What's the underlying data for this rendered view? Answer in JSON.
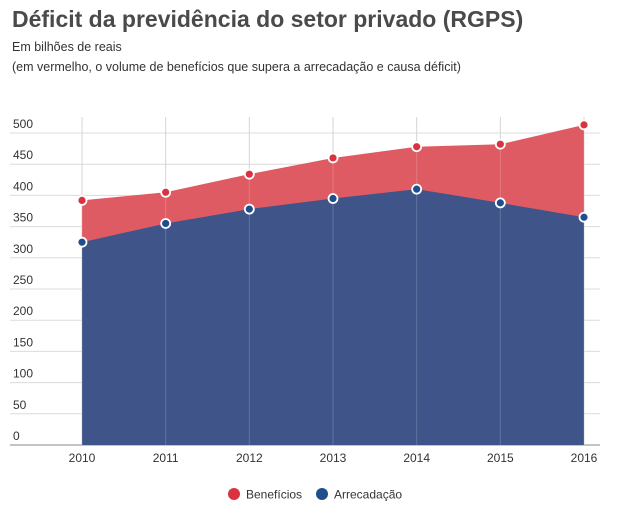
{
  "chart_data": {
    "type": "area",
    "title": "Déficit da previdência do setor privado (RGPS)",
    "subtitle": "Em bilhões de reais",
    "note": "(em vermelho, o volume de benefícios que supera a arrecadação e causa déficit)",
    "x": [
      "2010",
      "2011",
      "2012",
      "2013",
      "2014",
      "2015",
      "2016"
    ],
    "ylim": [
      0,
      500
    ],
    "yticks": [
      0,
      50,
      100,
      150,
      200,
      250,
      300,
      350,
      400,
      450,
      500
    ],
    "grid": true,
    "legend_position": "bottom",
    "series": [
      {
        "name": "Benefícios",
        "color": "#d9333f",
        "fill": "#df5b63",
        "values": [
          392,
          405,
          434,
          460,
          478,
          482,
          513
        ]
      },
      {
        "name": "Arrecadação",
        "color": "#1f4e8c",
        "fill": "#3f5489",
        "values": [
          325,
          355,
          378,
          395,
          410,
          388,
          365
        ]
      }
    ]
  }
}
